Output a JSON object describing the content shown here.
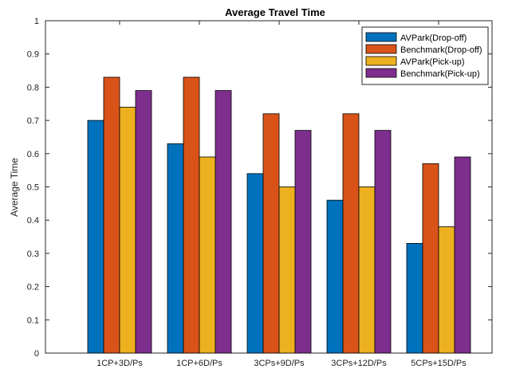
{
  "chart_data": {
    "type": "bar",
    "title": "Average Travel Time",
    "xlabel": "",
    "ylabel": "Average Time",
    "categories": [
      "1CP+3D/Ps",
      "1CP+6D/Ps",
      "3CPs+9D/Ps",
      "3CPs+12D/Ps",
      "5CPs+15D/Ps"
    ],
    "series": [
      {
        "name": "AVPark(Drop-off)",
        "color": "#0072BD",
        "values": [
          0.7,
          0.63,
          0.54,
          0.46,
          0.33
        ]
      },
      {
        "name": "Benchmark(Drop-off)",
        "color": "#D95319",
        "values": [
          0.83,
          0.83,
          0.72,
          0.72,
          0.57
        ]
      },
      {
        "name": "AVPark(Pick-up)",
        "color": "#EDB120",
        "values": [
          0.74,
          0.59,
          0.5,
          0.5,
          0.38
        ]
      },
      {
        "name": "Benchmark(Pick-up)",
        "color": "#7E2F8E",
        "values": [
          0.79,
          0.79,
          0.67,
          0.67,
          0.59
        ]
      }
    ],
    "ylim": [
      0,
      1
    ],
    "yticks": [
      "0",
      "0.1",
      "0.2",
      "0.3",
      "0.4",
      "0.5",
      "0.6",
      "0.7",
      "0.8",
      "0.9",
      "1"
    ],
    "ytick_values": [
      0,
      0.1,
      0.2,
      0.3,
      0.4,
      0.5,
      0.6,
      0.7,
      0.8,
      0.9,
      1
    ],
    "grid": false,
    "legend_position": "top-right"
  }
}
